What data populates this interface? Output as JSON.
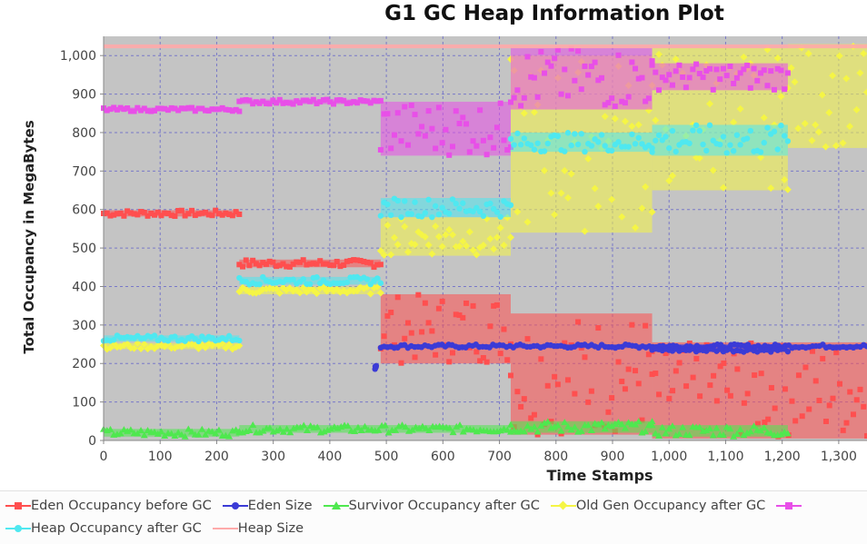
{
  "chart_data": {
    "type": "scatter",
    "title": "G1 GC Heap Information Plot",
    "xlabel": "Time Stamps",
    "ylabel": "Total Occupancy in MegaBytes",
    "xlim": [
      0,
      1350
    ],
    "ylim": [
      0,
      1050
    ],
    "x_ticks": [
      "0",
      "100",
      "200",
      "300",
      "400",
      "500",
      "600",
      "700",
      "800",
      "900",
      "1,000",
      "1,100",
      "1,200",
      "1,300"
    ],
    "y_ticks": [
      "0",
      "100",
      "200",
      "300",
      "400",
      "500",
      "600",
      "700",
      "800",
      "900",
      "1,000"
    ],
    "grid": true,
    "legend_position": "bottom",
    "series": [
      {
        "name": "Eden Occupancy before GC",
        "color": "#ff4f4f",
        "marker": "square",
        "segments": [
          {
            "x": [
              0,
              240
            ],
            "y": [
              590,
              590
            ],
            "spread": [
              -8,
              8
            ]
          },
          {
            "x": [
              240,
              490
            ],
            "y": [
              460,
              460
            ],
            "spread": [
              -10,
              10
            ]
          },
          {
            "x": [
              490,
              720
            ],
            "y": [
              280,
              280
            ],
            "spread": [
              -80,
              100
            ]
          },
          {
            "x": [
              720,
              970
            ],
            "y": [
              250,
              250
            ],
            "spread": [
              -235,
              80
            ]
          },
          {
            "x": [
              970,
              1350
            ],
            "y": [
              120,
              120
            ],
            "spread": [
              -115,
              135
            ]
          }
        ]
      },
      {
        "name": "Eden Size",
        "color": "#3b3bd6",
        "marker": "circle",
        "segments": [
          {
            "x": [
              480,
              482
            ],
            "y": [
              190,
              190
            ],
            "spread": [
              -5,
              5
            ]
          },
          {
            "x": [
              490,
              1350
            ],
            "y": [
              245,
              245
            ],
            "spread": [
              -5,
              5
            ]
          },
          {
            "x": [
              970,
              1210
            ],
            "y": [
              235,
              235
            ],
            "spread": [
              -5,
              5
            ]
          }
        ]
      },
      {
        "name": "Survivor Occupancy after GC",
        "color": "#4fe84f",
        "marker": "triangle",
        "segments": [
          {
            "x": [
              0,
              240
            ],
            "y": [
              20,
              20
            ],
            "spread": [
              -10,
              10
            ]
          },
          {
            "x": [
              240,
              720
            ],
            "y": [
              30,
              30
            ],
            "spread": [
              -10,
              10
            ]
          },
          {
            "x": [
              720,
              970
            ],
            "y": [
              35,
              35
            ],
            "spread": [
              -15,
              15
            ]
          },
          {
            "x": [
              970,
              1210
            ],
            "y": [
              25,
              25
            ],
            "spread": [
              -15,
              15
            ]
          }
        ]
      },
      {
        "name": "Old Gen Occupancy after GC",
        "color": "#f5f545",
        "marker": "diamond",
        "segments": [
          {
            "x": [
              0,
              240
            ],
            "y": [
              245,
              245
            ],
            "spread": [
              -8,
              8
            ]
          },
          {
            "x": [
              240,
              490
            ],
            "y": [
              390,
              390
            ],
            "spread": [
              -10,
              10
            ]
          },
          {
            "x": [
              490,
              720
            ],
            "y": [
              530,
              530
            ],
            "spread": [
              -50,
              50
            ]
          },
          {
            "x": [
              720,
              970
            ],
            "y": [
              700,
              700
            ],
            "spread": [
              -160,
              300
            ]
          },
          {
            "x": [
              970,
              1210
            ],
            "y": [
              800,
              800
            ],
            "spread": [
              -150,
              220
            ]
          },
          {
            "x": [
              1210,
              1350
            ],
            "y": [
              900,
              900
            ],
            "spread": [
              -140,
              130
            ]
          }
        ]
      },
      {
        "name": "",
        "color": "#e84fe8",
        "marker": "square",
        "segments": [
          {
            "x": [
              0,
              240
            ],
            "y": [
              860,
              860
            ],
            "spread": [
              -5,
              5
            ]
          },
          {
            "x": [
              240,
              490
            ],
            "y": [
              880,
              880
            ],
            "spread": [
              -6,
              6
            ]
          },
          {
            "x": [
              490,
              720
            ],
            "y": [
              820,
              820
            ],
            "spread": [
              -80,
              60
            ]
          },
          {
            "x": [
              720,
              970
            ],
            "y": [
              940,
              940
            ],
            "spread": [
              -80,
              80
            ]
          },
          {
            "x": [
              970,
              1210
            ],
            "y": [
              940,
              940
            ],
            "spread": [
              -30,
              40
            ]
          }
        ]
      },
      {
        "name": "Heap Occupancy after GC",
        "color": "#4fe8f0",
        "marker": "circle",
        "segments": [
          {
            "x": [
              0,
              240
            ],
            "y": [
              265,
              265
            ],
            "spread": [
              -8,
              8
            ]
          },
          {
            "x": [
              240,
              490
            ],
            "y": [
              415,
              415
            ],
            "spread": [
              -10,
              10
            ]
          },
          {
            "x": [
              490,
              720
            ],
            "y": [
              605,
              605
            ],
            "spread": [
              -25,
              25
            ]
          },
          {
            "x": [
              720,
              970
            ],
            "y": [
              770,
              770
            ],
            "spread": [
              -20,
              30
            ]
          },
          {
            "x": [
              970,
              1210
            ],
            "y": [
              760,
              760
            ],
            "spread": [
              -20,
              60
            ]
          }
        ]
      },
      {
        "name": "Heap Size",
        "color": "#ffaaaa",
        "marker": "line",
        "segments": [
          {
            "x": [
              0,
              1350
            ],
            "y": [
              1024,
              1024
            ],
            "spread": [
              -5,
              5
            ]
          }
        ]
      }
    ]
  }
}
